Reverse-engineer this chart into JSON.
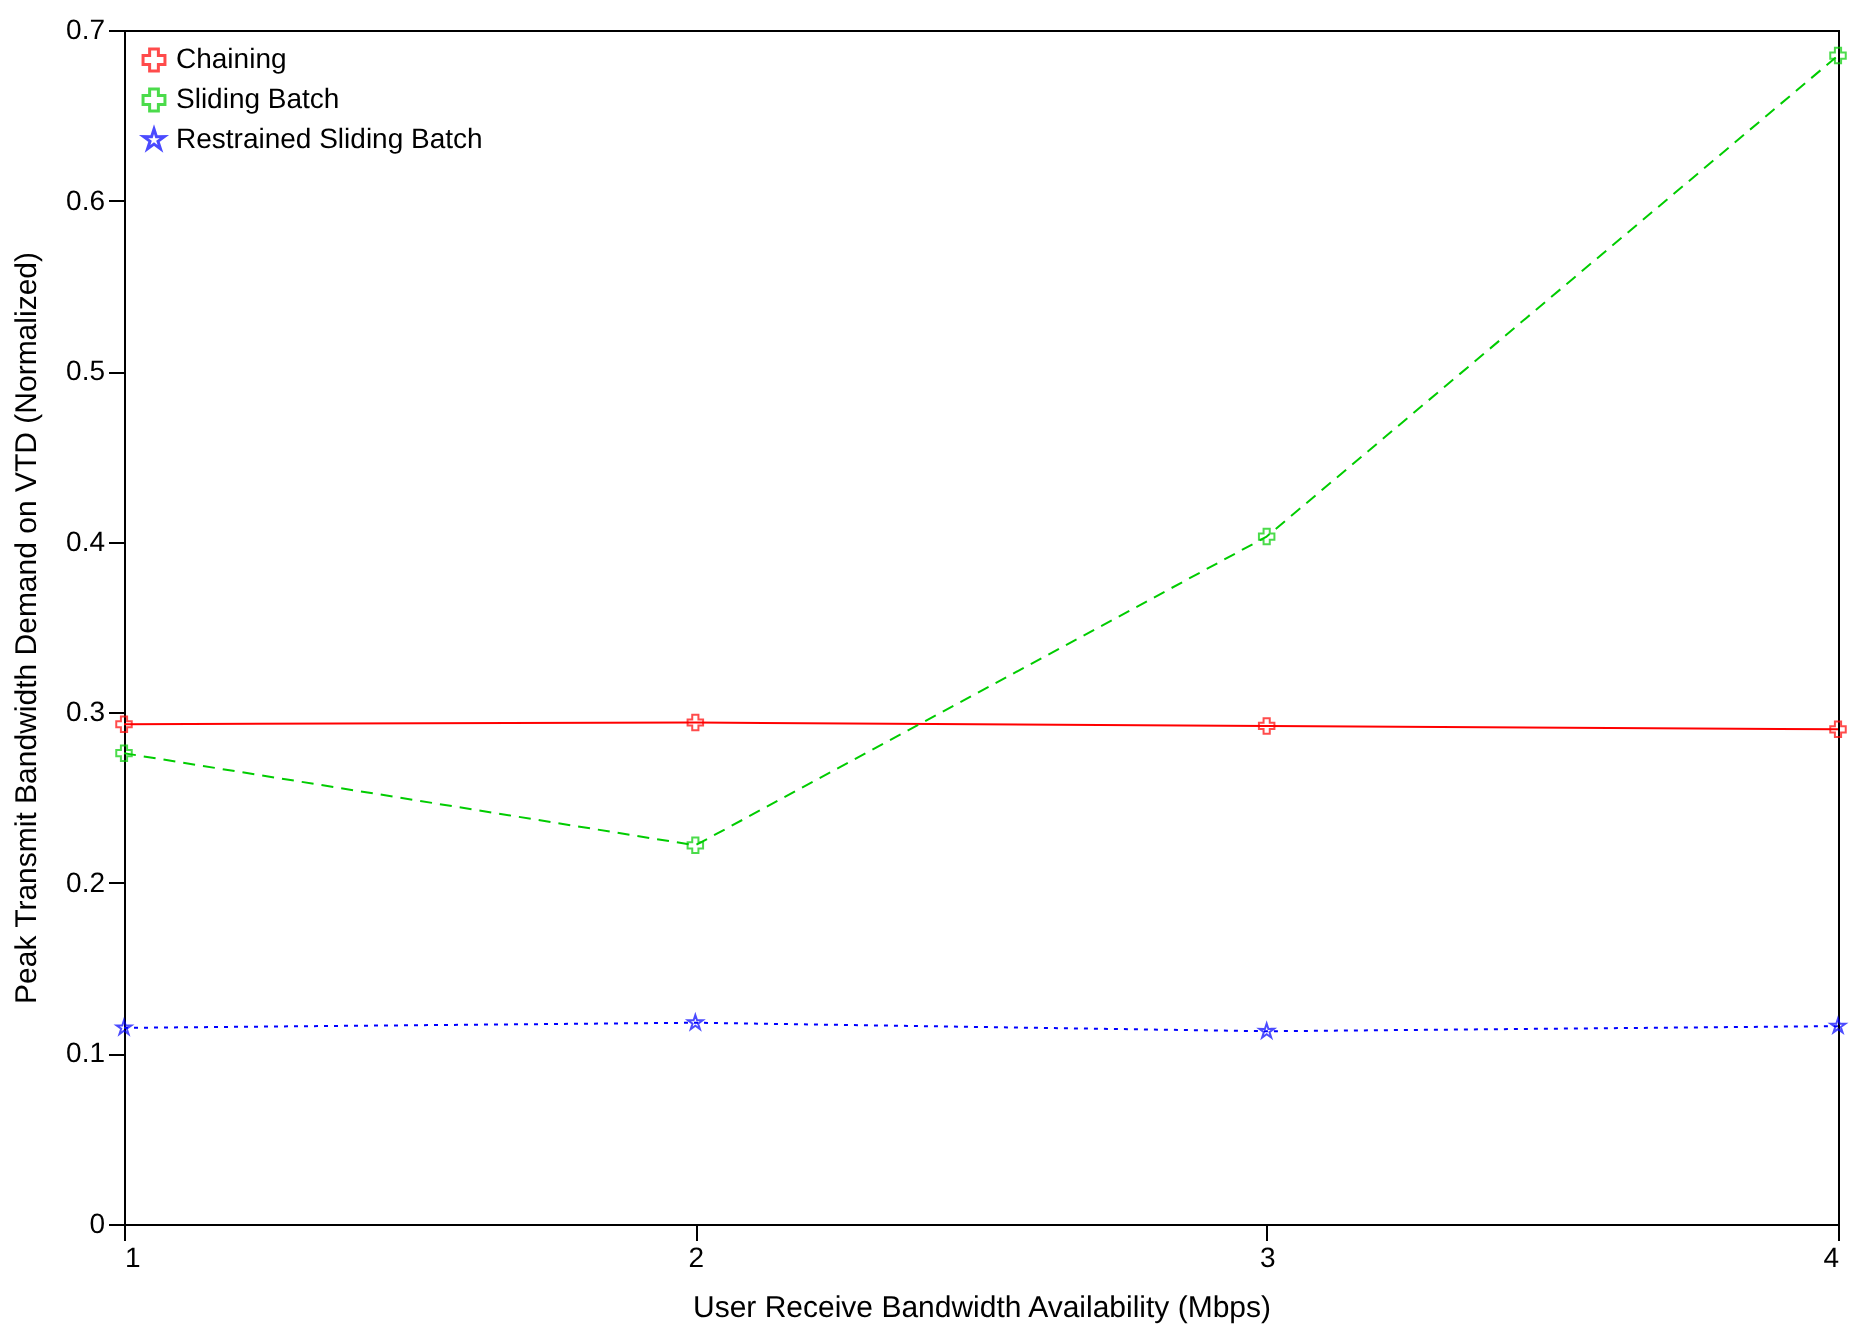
{
  "chart_data": {
    "type": "line",
    "xlabel": "User Receive Bandwidth Availability (Mbps)",
    "ylabel": "Peak Transmit Bandwidth Demand on VTD (Normalized)",
    "x": [
      1,
      2,
      3,
      4
    ],
    "xlim": [
      1,
      4
    ],
    "xticks": [
      1,
      2,
      3,
      4
    ],
    "ylim": [
      0,
      0.7
    ],
    "yticks": [
      {
        "value": 0,
        "label": "0"
      },
      0.1,
      0.2,
      0.3,
      0.4,
      0.5,
      0.6,
      0.7
    ],
    "legend": "top left",
    "grid": false,
    "series": [
      {
        "name": "Chaining",
        "color": "#ff0000",
        "values": [
          0.293,
          0.294,
          0.292,
          0.29
        ],
        "line_style": "solid",
        "marker": "cross"
      },
      {
        "name": "Sliding Batch",
        "color": "#00cc00",
        "values": [
          0.276,
          0.222,
          0.403,
          0.685
        ],
        "line_style": "dashed",
        "marker": "cross"
      },
      {
        "name": "Restrained Sliding Batch",
        "color": "#0000ff",
        "values": [
          0.115,
          0.118,
          0.113,
          0.116
        ],
        "line_style": "dotted",
        "marker": "star"
      }
    ]
  }
}
